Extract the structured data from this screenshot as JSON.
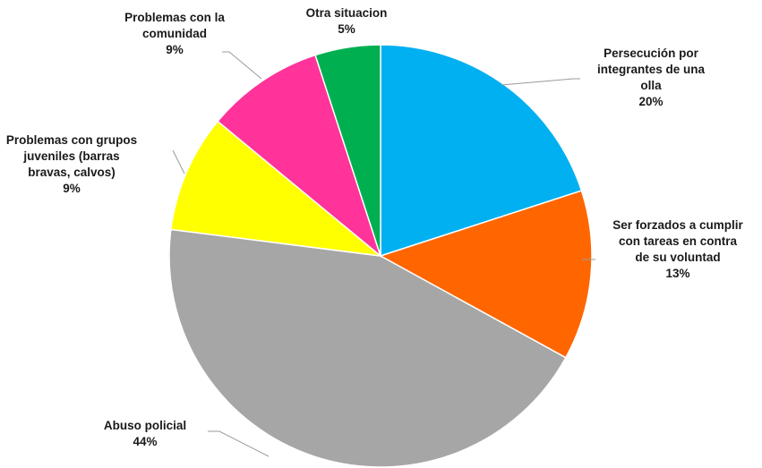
{
  "chart_data": {
    "type": "pie",
    "title": "",
    "slices": [
      {
        "label": [
          "Persecución por",
          "integrantes de una",
          "olla"
        ],
        "value": 20,
        "value_label": "20%",
        "color": "#00b0f0"
      },
      {
        "label": [
          "Ser forzados a cumplir",
          "con tareas en contra",
          "de su voluntad"
        ],
        "value": 13,
        "value_label": "13%",
        "color": "#ff6600"
      },
      {
        "label": [
          "Abuso policial"
        ],
        "value": 44,
        "value_label": "44%",
        "color": "#a6a6a6"
      },
      {
        "label": [
          "Problemas con grupos",
          "juveniles (barras",
          "bravas, calvos)"
        ],
        "value": 9,
        "value_label": "9%",
        "color": "#ffff00"
      },
      {
        "label": [
          "Problemas con la",
          "comunidad"
        ],
        "value": 9,
        "value_label": "9%",
        "color": "#ff3399"
      },
      {
        "label": [
          "Otra situacion"
        ],
        "value": 5,
        "value_label": "5%",
        "color": "#00b050"
      }
    ],
    "start_angle": "12 o'clock",
    "direction": "clockwise",
    "legend": "none",
    "data_labels": "outside with leader lines"
  }
}
